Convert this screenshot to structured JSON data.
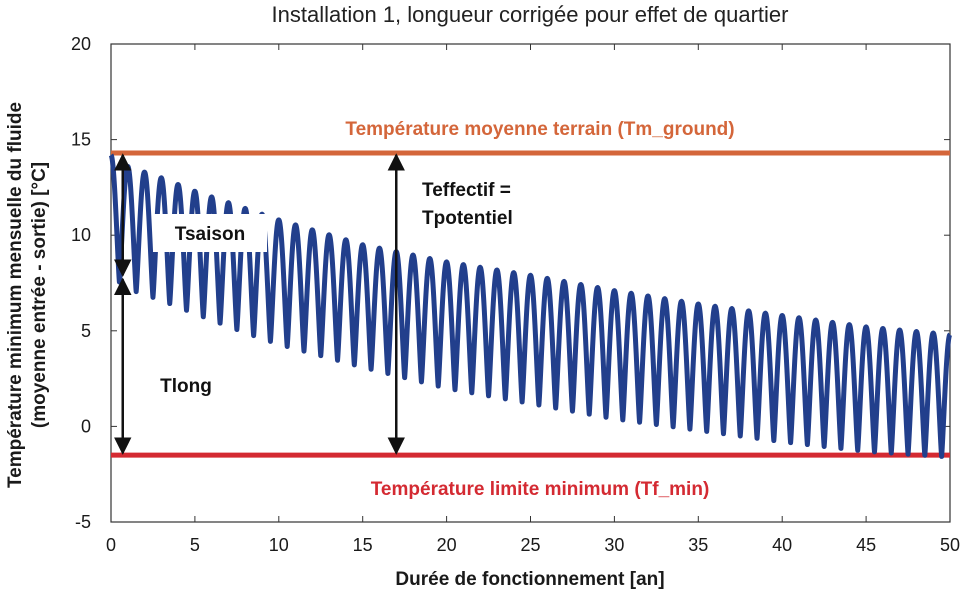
{
  "chart_data": {
    "type": "line",
    "title": "Installation 1, longueur corrigée pour effet de quartier",
    "xlabel": "Durée de fonctionnement [an]",
    "ylabel_line1": "Température minimum mensuelle du fluide",
    "ylabel_line2": "(moyenne entrée - sortie) [°C]",
    "xlim": [
      0,
      50
    ],
    "ylim": [
      -5,
      20
    ],
    "xticks": [
      0,
      5,
      10,
      15,
      20,
      25,
      30,
      35,
      40,
      45,
      50
    ],
    "yticks": [
      -5,
      0,
      5,
      10,
      15,
      20
    ],
    "grid": false,
    "series": [
      {
        "color": "#223f8c",
        "period_years": 1,
        "upper_envelope": {
          "x": [
            0,
            1,
            3,
            5,
            8,
            10,
            15,
            20,
            25,
            30,
            35,
            40,
            45,
            50
          ],
          "y": [
            14.2,
            13.6,
            13.0,
            12.3,
            11.4,
            10.8,
            9.5,
            8.6,
            7.9,
            7.1,
            6.4,
            5.8,
            5.2,
            4.8
          ]
        },
        "lower_envelope": {
          "x": [
            0,
            1,
            3,
            5,
            8,
            10,
            15,
            20,
            25,
            30,
            35,
            40,
            45,
            50
          ],
          "y": [
            7.9,
            7.2,
            6.6,
            5.9,
            4.9,
            4.3,
            3.1,
            2.0,
            1.2,
            0.4,
            -0.2,
            -0.8,
            -1.3,
            -1.6
          ]
        }
      }
    ],
    "reference_lines": [
      {
        "label": "Température moyenne terrain (Tm_ground)",
        "y": 14.3,
        "color": "#d4663a"
      },
      {
        "label": "Température limite minimum (Tf_min)",
        "y": -1.5,
        "color": "#d42a32"
      }
    ],
    "annotations": [
      {
        "label": "Tsaison",
        "x": 0.7,
        "y_from": 14.3,
        "y_to": 7.8
      },
      {
        "label": "Tlong",
        "x": 0.7,
        "y_from": 7.8,
        "y_to": -1.5
      },
      {
        "label_line1": "Teffectif =",
        "label_line2": "Tpotentiel",
        "x": 17,
        "y_from": 14.3,
        "y_to": -1.5
      }
    ]
  }
}
